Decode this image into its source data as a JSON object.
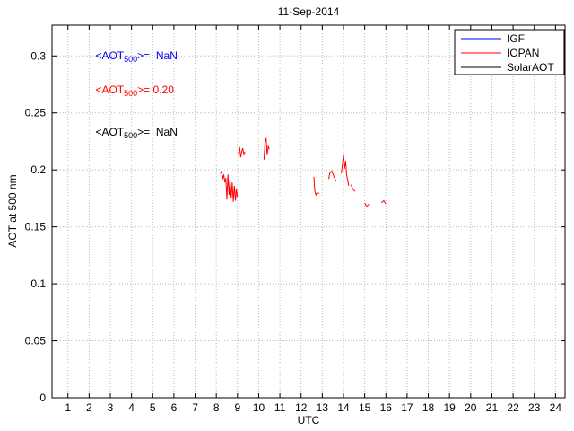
{
  "chart_data": {
    "type": "line",
    "title": "11-Sep-2014",
    "xlabel": "UTC",
    "ylabel": "AOT at 500 nm",
    "xlim": [
      0.25,
      24.45
    ],
    "ylim": [
      0,
      0.327
    ],
    "xticks": [
      1,
      2,
      3,
      4,
      5,
      6,
      7,
      8,
      9,
      10,
      11,
      12,
      13,
      14,
      15,
      16,
      17,
      18,
      19,
      20,
      21,
      22,
      23,
      24
    ],
    "xtick_labels": [
      "1",
      "2",
      "3",
      "4",
      "5",
      "6",
      "7",
      "8",
      "9",
      "10",
      "11",
      "12",
      "13",
      "14",
      "15",
      "16",
      "17",
      "18",
      "19",
      "20",
      "21",
      "22",
      "23",
      "24"
    ],
    "yticks": [
      0,
      0.05,
      0.1,
      0.15,
      0.2,
      0.25,
      0.3
    ],
    "ytick_labels": [
      "0",
      "0.05",
      "0.1",
      "0.15",
      "0.2",
      "0.25",
      "0.3"
    ],
    "grid": true,
    "grid_color": "#b8b8b8",
    "axes_color": "#000000",
    "legend": {
      "position": "top-right",
      "entries": [
        {
          "label": "IGF",
          "color": "#0000ff"
        },
        {
          "label": "IOPAN",
          "color": "#ff0000"
        },
        {
          "label": "SolarAOT",
          "color": "#000000"
        }
      ]
    },
    "annotations": [
      {
        "pre": "<AOT",
        "sub": "500",
        "post": ">=  NaN",
        "color": "#0000ff",
        "x": 2.3,
        "y": 0.3
      },
      {
        "pre": "<AOT",
        "sub": "500",
        "post": ">= 0.20",
        "color": "#ff0000",
        "x": 2.3,
        "y": 0.27
      },
      {
        "pre": "<AOT",
        "sub": "500",
        "post": ">=  NaN",
        "color": "#000000",
        "x": 2.3,
        "y": 0.233
      }
    ],
    "series": [
      {
        "name": "IGF",
        "color": "#0000ff",
        "segments": []
      },
      {
        "name": "IOPAN",
        "color": "#ff0000",
        "segments": [
          [
            [
              8.2,
              0.1965
            ],
            [
              8.25,
              0.199
            ],
            [
              8.3,
              0.192
            ],
            [
              8.35,
              0.196
            ],
            [
              8.4,
              0.189
            ],
            [
              8.45,
              0.193
            ],
            [
              8.5,
              0.174
            ],
            [
              8.55,
              0.196
            ],
            [
              8.6,
              0.178
            ],
            [
              8.65,
              0.191
            ],
            [
              8.7,
              0.175
            ],
            [
              8.75,
              0.189
            ],
            [
              8.8,
              0.172
            ],
            [
              8.85,
              0.186
            ],
            [
              8.9,
              0.173
            ],
            [
              8.95,
              0.183
            ],
            [
              9.0,
              0.176
            ]
          ],
          [
            [
              9.05,
              0.214
            ],
            [
              9.1,
              0.22
            ],
            [
              9.15,
              0.211
            ],
            [
              9.2,
              0.216
            ],
            [
              9.25,
              0.219
            ],
            [
              9.3,
              0.213
            ],
            [
              9.35,
              0.216
            ]
          ],
          [
            [
              10.25,
              0.209
            ],
            [
              10.3,
              0.224
            ],
            [
              10.35,
              0.228
            ],
            [
              10.4,
              0.213
            ],
            [
              10.45,
              0.221
            ],
            [
              10.5,
              0.218
            ]
          ],
          [
            [
              12.6,
              0.194
            ],
            [
              12.65,
              0.181
            ],
            [
              12.7,
              0.178
            ],
            [
              12.75,
              0.18
            ],
            [
              12.85,
              0.179
            ]
          ],
          [
            [
              13.3,
              0.192
            ],
            [
              13.35,
              0.197
            ],
            [
              13.45,
              0.199
            ],
            [
              13.55,
              0.194
            ],
            [
              13.65,
              0.19
            ]
          ],
          [
            [
              13.9,
              0.197
            ],
            [
              13.95,
              0.205
            ],
            [
              14.0,
              0.213
            ],
            [
              14.05,
              0.201
            ],
            [
              14.1,
              0.208
            ],
            [
              14.15,
              0.196
            ],
            [
              14.2,
              0.191
            ],
            [
              14.25,
              0.186
            ]
          ],
          [
            [
              14.35,
              0.187
            ],
            [
              14.45,
              0.183
            ],
            [
              14.55,
              0.181
            ]
          ],
          [
            [
              15.0,
              0.171
            ],
            [
              15.1,
              0.168
            ],
            [
              15.2,
              0.17
            ]
          ],
          [
            [
              15.8,
              0.171
            ],
            [
              15.9,
              0.173
            ],
            [
              16.0,
              0.17
            ]
          ]
        ]
      },
      {
        "name": "SolarAOT",
        "color": "#000000",
        "segments": []
      }
    ]
  }
}
